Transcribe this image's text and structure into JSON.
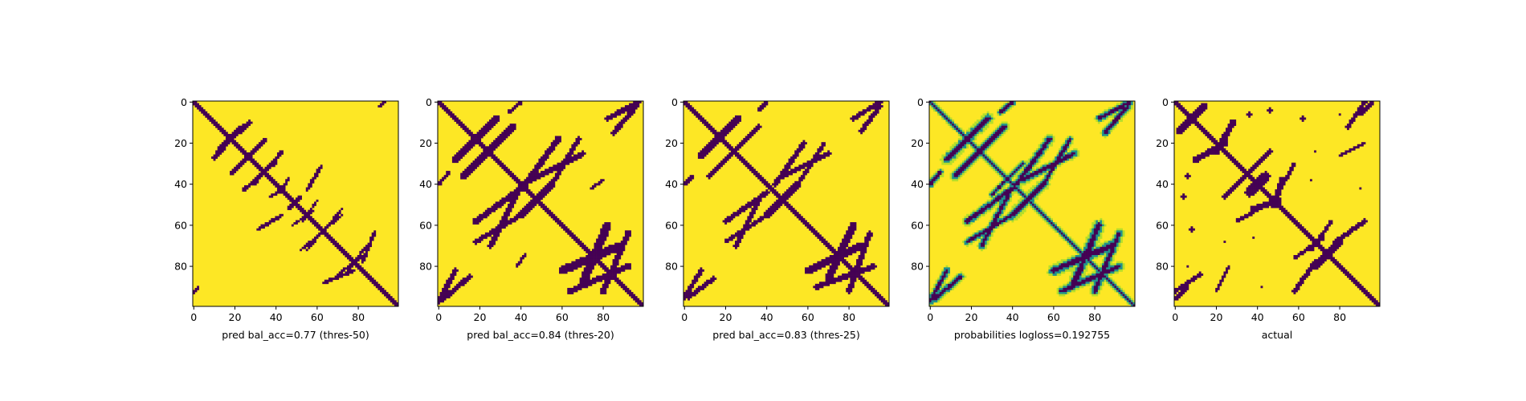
{
  "colors": {
    "low": "#440154",
    "mid": "#21918c",
    "light": "#b5de2b",
    "high": "#fde725"
  },
  "chart_data": [
    {
      "type": "heatmap",
      "id": "pred50",
      "xlabel": "pred bal_acc=0.77 (thres-50)",
      "ylabel": "",
      "xticks": [
        "0",
        "20",
        "40",
        "60",
        "80"
      ],
      "xtick_values": [
        0,
        20,
        40,
        60,
        80
      ],
      "yticks": [
        "0",
        "20",
        "40",
        "60",
        "80"
      ],
      "ytick_values": [
        0,
        20,
        40,
        60,
        80
      ],
      "xlim": [
        0,
        100
      ],
      "ylim": [
        100,
        0
      ],
      "grid": false,
      "legend": "none",
      "dims": [
        100,
        100
      ],
      "values_binary": true,
      "diag_width": 2.2,
      "contacts": [
        [
          10,
          22,
          13,
          27,
          2.2
        ],
        [
          21,
          35,
          18,
          32,
          1.4
        ],
        [
          24,
          40,
          29,
          43,
          1.6
        ],
        [
          37,
          44,
          42,
          46,
          1.2
        ],
        [
          46,
          50,
          48,
          52,
          1.5
        ],
        [
          48,
          58,
          53,
          60,
          1.0
        ],
        [
          52,
          72,
          55,
          72,
          1.0
        ],
        [
          55,
          62,
          31,
          43,
          1.5
        ],
        [
          63,
          78,
          82,
          88,
          1.6
        ],
        [
          70,
          82,
          75,
          84,
          1.4
        ],
        [
          90,
          93,
          0,
          2,
          1.5
        ],
        [
          0,
          2,
          90,
          93,
          1.2
        ]
      ]
    },
    {
      "type": "heatmap",
      "id": "pred20",
      "xlabel": "pred bal_acc=0.84 (thres-20)",
      "ylabel": "",
      "xticks": [
        "0",
        "20",
        "40",
        "60",
        "80"
      ],
      "xtick_values": [
        0,
        20,
        40,
        60,
        80
      ],
      "yticks": [
        "0",
        "20",
        "40",
        "60",
        "80"
      ],
      "ytick_values": [
        0,
        20,
        40,
        60,
        80
      ],
      "xlim": [
        0,
        100
      ],
      "ylim": [
        100,
        0
      ],
      "grid": false,
      "legend": "none",
      "dims": [
        100,
        100
      ],
      "values_binary": true,
      "diag_width": 3.2,
      "contacts": [
        [
          0,
          8,
          82,
          97,
          2.2
        ],
        [
          8,
          28,
          8,
          28,
          3.4
        ],
        [
          12,
          24,
          24,
          36,
          2.6
        ],
        [
          18,
          40,
          42,
          58,
          2.6
        ],
        [
          34,
          40,
          0,
          5,
          1.6
        ],
        [
          40,
          55,
          40,
          55,
          3.4
        ],
        [
          45,
          70,
          25,
          38,
          2.4
        ],
        [
          55,
          68,
          18,
          40,
          2.0
        ],
        [
          70,
          82,
          60,
          88,
          3.6
        ],
        [
          64,
          92,
          80,
          92,
          2.6
        ],
        [
          85,
          96,
          2,
          15,
          2.2
        ],
        [
          74,
          80,
          38,
          42,
          1.4
        ]
      ]
    },
    {
      "type": "heatmap",
      "id": "pred25",
      "xlabel": "pred bal_acc=0.83 (thres-25)",
      "ylabel": "",
      "xticks": [
        "0",
        "20",
        "40",
        "60",
        "80"
      ],
      "xtick_values": [
        0,
        20,
        40,
        60,
        80
      ],
      "yticks": [
        "0",
        "20",
        "40",
        "60",
        "80"
      ],
      "ytick_values": [
        0,
        20,
        40,
        60,
        80
      ],
      "xlim": [
        0,
        100
      ],
      "ylim": [
        100,
        0
      ],
      "grid": false,
      "legend": "none",
      "dims": [
        100,
        100
      ],
      "values_binary": true,
      "diag_width": 3.0,
      "contacts": [
        [
          0,
          8,
          82,
          95,
          2.0
        ],
        [
          8,
          26,
          8,
          26,
          3.2
        ],
        [
          12,
          24,
          24,
          36,
          2.4
        ],
        [
          20,
          40,
          44,
          58,
          2.2
        ],
        [
          36,
          40,
          0,
          4,
          1.4
        ],
        [
          40,
          55,
          40,
          55,
          3.0
        ],
        [
          48,
          70,
          25,
          36,
          2.2
        ],
        [
          55,
          68,
          20,
          40,
          1.8
        ],
        [
          70,
          82,
          60,
          86,
          3.2
        ],
        [
          64,
          92,
          80,
          90,
          2.4
        ],
        [
          86,
          95,
          2,
          14,
          2.0
        ]
      ]
    },
    {
      "type": "heatmap",
      "id": "probs",
      "xlabel": "probabilities logloss=0.192755",
      "ylabel": "",
      "xticks": [
        "0",
        "20",
        "40",
        "60",
        "80"
      ],
      "xtick_values": [
        0,
        20,
        40,
        60,
        80
      ],
      "yticks": [
        "0",
        "20",
        "40",
        "60",
        "80"
      ],
      "ytick_values": [
        0,
        20,
        40,
        60,
        80
      ],
      "xlim": [
        0,
        100
      ],
      "ylim": [
        100,
        0
      ],
      "grid": false,
      "legend": "none",
      "dims": [
        100,
        100
      ],
      "values_binary": false,
      "diag_width": 2.6,
      "contacts": [
        [
          0,
          8,
          82,
          97,
          2.6
        ],
        [
          8,
          28,
          8,
          28,
          3.6
        ],
        [
          12,
          24,
          24,
          36,
          3.0
        ],
        [
          18,
          40,
          42,
          58,
          3.0
        ],
        [
          34,
          40,
          0,
          5,
          2.4
        ],
        [
          40,
          55,
          40,
          55,
          3.6
        ],
        [
          45,
          70,
          25,
          38,
          2.8
        ],
        [
          55,
          68,
          18,
          40,
          2.4
        ],
        [
          70,
          82,
          60,
          88,
          3.8
        ],
        [
          64,
          92,
          80,
          92,
          3.0
        ],
        [
          85,
          96,
          2,
          15,
          2.6
        ],
        [
          30,
          45,
          30,
          45,
          2.0
        ]
      ]
    },
    {
      "type": "heatmap",
      "id": "actual",
      "xlabel": "actual",
      "ylabel": "",
      "xticks": [
        "0",
        "20",
        "40",
        "60",
        "80"
      ],
      "xtick_values": [
        0,
        20,
        40,
        60,
        80
      ],
      "yticks": [
        "0",
        "20",
        "40",
        "60",
        "80"
      ],
      "ytick_values": [
        0,
        20,
        40,
        60,
        80
      ],
      "xlim": [
        0,
        100
      ],
      "ylim": [
        100,
        0
      ],
      "grid": false,
      "legend": "none",
      "dims": [
        100,
        100
      ],
      "values_binary": true,
      "diag_width": 2.6,
      "contacts": [
        [
          2,
          14,
          2,
          14,
          3.4
        ],
        [
          10,
          24,
          20,
          28,
          2.6
        ],
        [
          24,
          34,
          36,
          46,
          2.0
        ],
        [
          36,
          44,
          36,
          44,
          4.0
        ],
        [
          38,
          50,
          48,
          52,
          2.6
        ],
        [
          50,
          58,
          30,
          44,
          1.6
        ],
        [
          58,
          68,
          78,
          92,
          2.0
        ],
        [
          68,
          80,
          68,
          80,
          2.6
        ],
        [
          84,
          92,
          0,
          12,
          2.0
        ],
        [
          0,
          6,
          90,
          96,
          1.6
        ],
        [
          20,
          26,
          80,
          92,
          1.6
        ],
        [
          66,
          76,
          58,
          72,
          1.6
        ]
      ],
      "blobs": [
        [
          36,
          6,
          2.5
        ],
        [
          46,
          4,
          2.0
        ],
        [
          62,
          8,
          2.0
        ],
        [
          66,
          38,
          1.5
        ],
        [
          68,
          24,
          1.5
        ],
        [
          80,
          6,
          1.8
        ],
        [
          90,
          42,
          1.2
        ]
      ]
    }
  ]
}
